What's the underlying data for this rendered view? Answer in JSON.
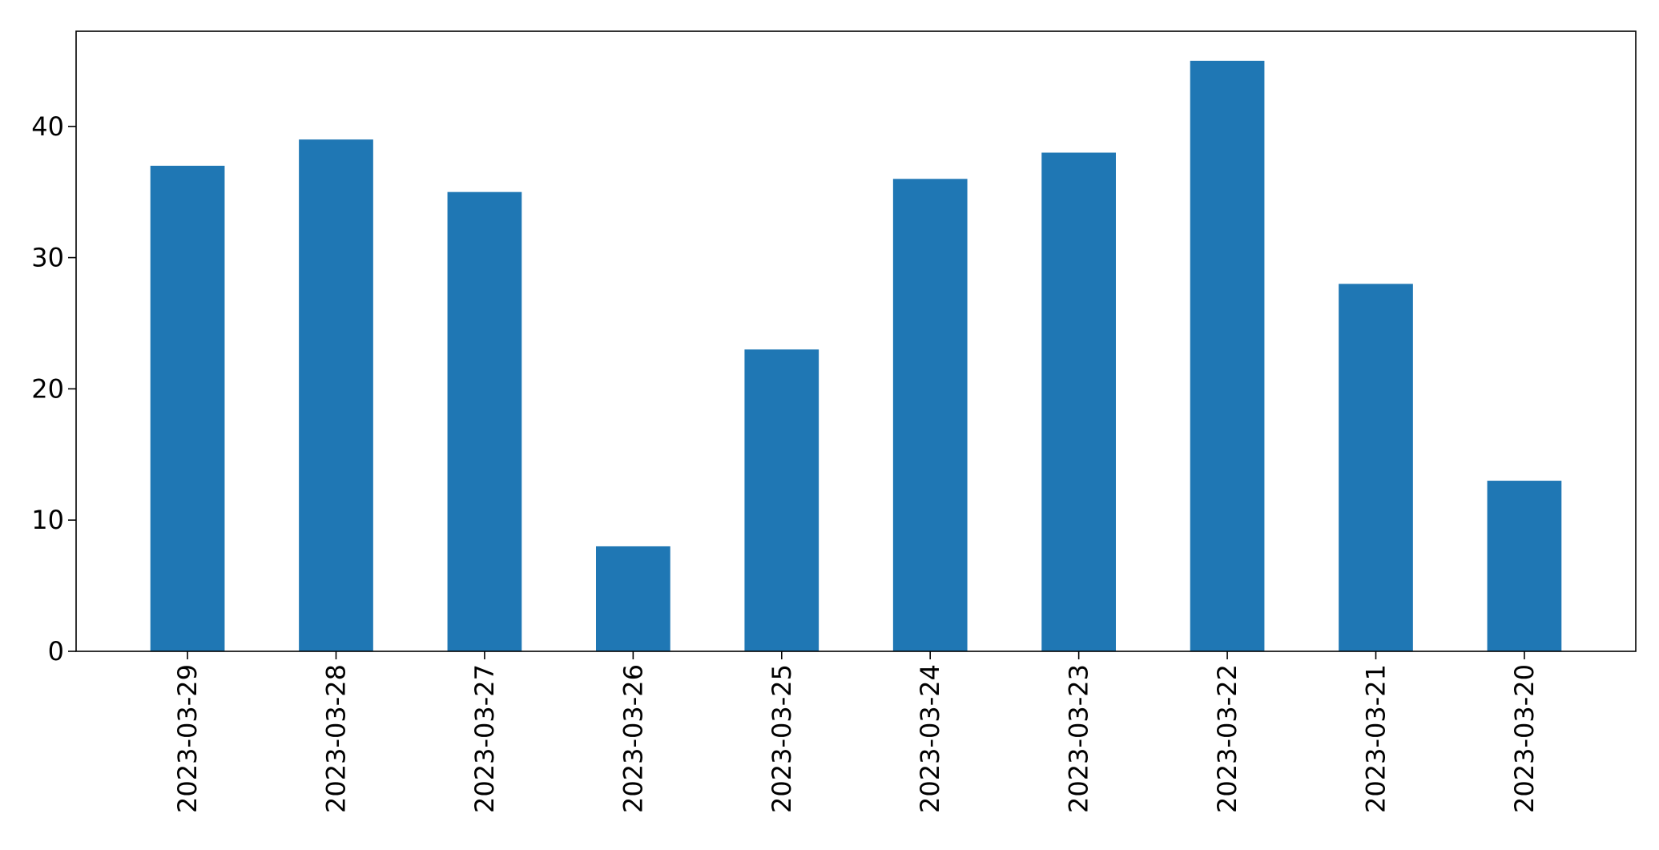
{
  "chart_data": {
    "type": "bar",
    "title": "",
    "xlabel": "",
    "ylabel": "",
    "categories": [
      "2023-03-29",
      "2023-03-28",
      "2023-03-27",
      "2023-03-26",
      "2023-03-25",
      "2023-03-24",
      "2023-03-23",
      "2023-03-22",
      "2023-03-21",
      "2023-03-20"
    ],
    "values": [
      37,
      39,
      35,
      8,
      23,
      36,
      38,
      45,
      28,
      13
    ],
    "yticks": [
      0,
      10,
      20,
      30,
      40
    ],
    "ylim": [
      0,
      47.25
    ],
    "bar_color": "#1f77b4",
    "grid": false,
    "legend": false
  }
}
